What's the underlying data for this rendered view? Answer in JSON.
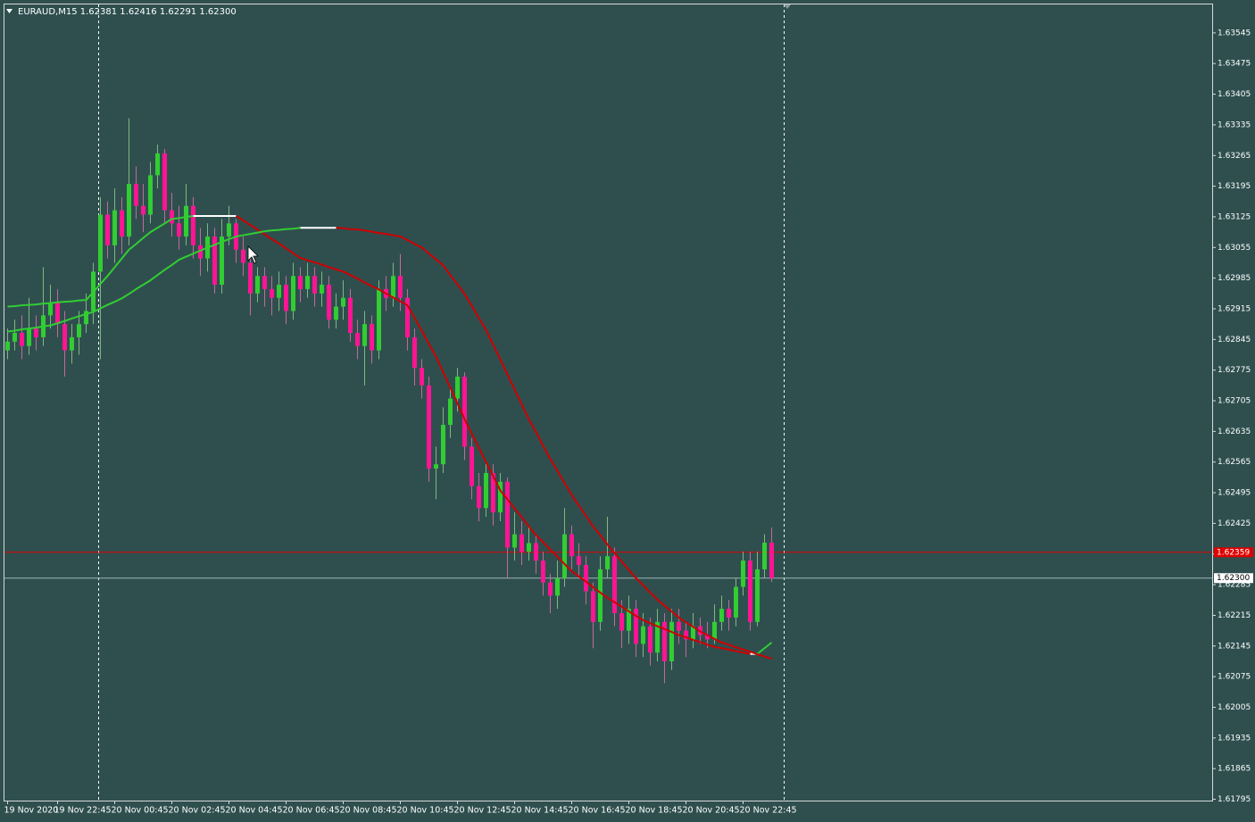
{
  "chart_data": {
    "type": "candlestick",
    "title": "EURAUD,M15  1.62381 1.62416 1.62291 1.62300",
    "categories": [
      "19 Nov 2020",
      null,
      null,
      null,
      null,
      null,
      null,
      "19 Nov 22:45",
      null,
      null,
      null,
      null,
      null,
      null,
      null,
      "20 Nov 00:45",
      null,
      null,
      null,
      null,
      null,
      null,
      null,
      "20 Nov 02:45",
      null,
      null,
      null,
      null,
      null,
      null,
      null,
      "20 Nov 04:45",
      null,
      null,
      null,
      null,
      null,
      null,
      null,
      "20 Nov 06:45",
      null,
      null,
      null,
      null,
      null,
      null,
      null,
      "20 Nov 08:45",
      null,
      null,
      null,
      null,
      null,
      null,
      null,
      "20 Nov 10:45",
      null,
      null,
      null,
      null,
      null,
      null,
      null,
      "20 Nov 12:45",
      null,
      null,
      null,
      null,
      null,
      null,
      null,
      "20 Nov 14:45",
      null,
      null,
      null,
      null,
      null,
      null,
      null,
      "20 Nov 16:45",
      null,
      null,
      null,
      null,
      null,
      null,
      null,
      "20 Nov 18:45",
      null,
      null,
      null,
      null,
      null,
      null,
      null,
      "20 Nov 20:45",
      null,
      null,
      null,
      null,
      null,
      null,
      null,
      "20 Nov 22:45",
      null,
      null,
      null,
      null
    ],
    "open": [
      1.6282,
      1.6284,
      1.6286,
      1.6283,
      1.6287,
      1.6285,
      1.629,
      1.6293,
      1.6288,
      1.6282,
      1.6285,
      1.6288,
      1.6291,
      1.63,
      1.6313,
      1.6306,
      1.6314,
      1.6308,
      1.632,
      1.6315,
      1.6313,
      1.6322,
      1.6327,
      1.6314,
      1.6311,
      1.6308,
      1.6315,
      1.6306,
      1.6303,
      1.6308,
      1.6297,
      1.6308,
      1.6311,
      1.6305,
      1.6302,
      1.6295,
      1.6299,
      1.6296,
      1.6294,
      1.6297,
      1.6291,
      1.6299,
      1.6296,
      1.6299,
      1.6295,
      1.6297,
      1.6289,
      1.6292,
      1.6294,
      1.6286,
      1.6283,
      1.6288,
      1.6282,
      1.6296,
      1.6294,
      1.6299,
      1.6294,
      1.6285,
      1.6278,
      1.6274,
      1.6255,
      1.6256,
      1.6265,
      1.6271,
      1.6276,
      1.626,
      1.6251,
      1.6246,
      1.6254,
      1.6245,
      1.6252,
      1.6237,
      1.624,
      1.6236,
      1.6238,
      1.6234,
      1.6229,
      1.6226,
      1.623,
      1.624,
      1.6235,
      1.6233,
      1.6227,
      1.622,
      1.6232,
      1.6235,
      1.6222,
      1.6218,
      1.6223,
      1.6215,
      1.6219,
      1.6213,
      1.622,
      1.6211,
      1.622,
      1.6218,
      1.6216,
      1.6219,
      1.6217,
      1.6216,
      1.622,
      1.6223,
      1.6221,
      1.6228,
      1.6234,
      1.622,
      1.6232,
      1.62381
    ],
    "high": [
      1.6287,
      1.6289,
      1.629,
      1.6294,
      1.629,
      1.6301,
      1.6297,
      1.6296,
      1.6291,
      1.6288,
      1.6291,
      1.6295,
      1.6302,
      1.6317,
      1.6316,
      1.6319,
      1.6317,
      1.6335,
      1.6324,
      1.632,
      1.6325,
      1.6329,
      1.6328,
      1.6318,
      1.6315,
      1.632,
      1.6317,
      1.631,
      1.6311,
      1.631,
      1.6312,
      1.6315,
      1.6312,
      1.6308,
      1.6304,
      1.6301,
      1.6301,
      1.6299,
      1.63,
      1.6299,
      1.6302,
      1.6301,
      1.6302,
      1.6301,
      1.63,
      1.6299,
      1.6295,
      1.6298,
      1.6296,
      1.6289,
      1.6291,
      1.629,
      1.6298,
      1.6299,
      1.6302,
      1.6304,
      1.6296,
      1.6287,
      1.628,
      1.6276,
      1.626,
      1.6269,
      1.6274,
      1.6278,
      1.6277,
      1.6262,
      1.6254,
      1.6256,
      1.6256,
      1.6254,
      1.6253,
      1.6245,
      1.6243,
      1.6242,
      1.624,
      1.6236,
      1.6231,
      1.6234,
      1.6246,
      1.6242,
      1.6238,
      1.6235,
      1.6229,
      1.6235,
      1.6244,
      1.6237,
      1.6225,
      1.6226,
      1.6225,
      1.6222,
      1.6221,
      1.6223,
      1.6222,
      1.6223,
      1.6223,
      1.622,
      1.6222,
      1.6221,
      1.622,
      1.6224,
      1.6226,
      1.6225,
      1.623,
      1.6236,
      1.6236,
      1.6236,
      1.624,
      1.62416
    ],
    "low": [
      1.628,
      1.6282,
      1.628,
      1.6281,
      1.6282,
      1.6283,
      1.6287,
      1.6285,
      1.6276,
      1.6279,
      1.6281,
      1.6286,
      1.6288,
      1.628,
      1.6303,
      1.6302,
      1.6304,
      1.6306,
      1.6312,
      1.6309,
      1.6311,
      1.6319,
      1.6311,
      1.6308,
      1.6305,
      1.6306,
      1.6303,
      1.6299,
      1.63,
      1.6295,
      1.6295,
      1.6306,
      1.6302,
      1.6299,
      1.629,
      1.6293,
      1.6292,
      1.629,
      1.6291,
      1.6288,
      1.6289,
      1.6293,
      1.6294,
      1.6292,
      1.6292,
      1.6287,
      1.6287,
      1.6289,
      1.6284,
      1.628,
      1.6274,
      1.6279,
      1.628,
      1.6291,
      1.6292,
      1.6291,
      1.6282,
      1.6274,
      1.6271,
      1.6252,
      1.6248,
      1.6254,
      1.6262,
      1.6268,
      1.6257,
      1.6248,
      1.6243,
      1.6244,
      1.6242,
      1.6243,
      1.623,
      1.6234,
      1.6233,
      1.6234,
      1.6231,
      1.6226,
      1.6222,
      1.6223,
      1.6228,
      1.6232,
      1.623,
      1.6224,
      1.6214,
      1.6218,
      1.623,
      1.6219,
      1.6214,
      1.6215,
      1.6212,
      1.6212,
      1.621,
      1.6211,
      1.6206,
      1.6209,
      1.6215,
      1.6212,
      1.6214,
      1.6215,
      1.6214,
      1.6215,
      1.6218,
      1.6218,
      1.6219,
      1.6226,
      1.6218,
      1.6219,
      1.623,
      1.62291
    ],
    "close": [
      1.6284,
      1.6286,
      1.6283,
      1.6287,
      1.6285,
      1.629,
      1.6293,
      1.6288,
      1.6282,
      1.6285,
      1.6288,
      1.6291,
      1.63,
      1.6313,
      1.6306,
      1.6314,
      1.6308,
      1.632,
      1.6315,
      1.6313,
      1.6322,
      1.6327,
      1.6314,
      1.6311,
      1.6308,
      1.6315,
      1.6306,
      1.6303,
      1.6308,
      1.6297,
      1.6308,
      1.6311,
      1.6305,
      1.6302,
      1.6295,
      1.6299,
      1.6296,
      1.6294,
      1.6297,
      1.6291,
      1.6299,
      1.6296,
      1.6299,
      1.6295,
      1.6297,
      1.6289,
      1.6292,
      1.6294,
      1.6286,
      1.6283,
      1.6288,
      1.6282,
      1.6296,
      1.6294,
      1.6299,
      1.6294,
      1.6285,
      1.6278,
      1.6274,
      1.6255,
      1.6256,
      1.6265,
      1.6271,
      1.6276,
      1.626,
      1.6251,
      1.6246,
      1.6254,
      1.6245,
      1.6252,
      1.6237,
      1.624,
      1.6236,
      1.6238,
      1.6234,
      1.6229,
      1.6226,
      1.623,
      1.624,
      1.6235,
      1.6233,
      1.6227,
      1.622,
      1.6232,
      1.6235,
      1.6222,
      1.6218,
      1.6223,
      1.6215,
      1.6219,
      1.6213,
      1.622,
      1.6211,
      1.622,
      1.6218,
      1.6216,
      1.6219,
      1.6217,
      1.6216,
      1.622,
      1.6223,
      1.6221,
      1.6228,
      1.6234,
      1.622,
      1.6232,
      1.62381,
      1.623
    ],
    "bull_color": "#32cd32",
    "bear_color": "#ff1493",
    "moving_averages": [
      {
        "values": [
          1.6292,
          1.62921,
          1.62923,
          1.62924,
          1.62925,
          1.62927,
          1.62928,
          1.6293,
          1.62931,
          1.62932,
          1.62934,
          1.62935,
          1.62953,
          1.62972,
          1.6299,
          1.6301,
          1.6303,
          1.6305,
          1.63063,
          1.63077,
          1.6309,
          1.631,
          1.6311,
          1.6312,
          1.63122,
          1.63125,
          1.63127,
          1.63127,
          1.63127,
          1.63127,
          1.63127,
          1.63127,
          1.63127,
          1.63117,
          1.63106,
          1.63096,
          1.63085,
          1.63074,
          1.63064,
          1.63053,
          1.63042,
          1.63031,
          1.63026,
          1.63021,
          1.63016,
          1.6301,
          1.63005,
          1.63,
          1.62992,
          1.62984,
          1.62975,
          1.62967,
          1.62959,
          1.6295,
          1.62941,
          1.62932,
          1.62923,
          1.62894,
          1.62865,
          1.62835,
          1.62806,
          1.6277,
          1.62735,
          1.62699,
          1.62663,
          1.6263,
          1.62598,
          1.62565,
          1.62533,
          1.625,
          1.6248,
          1.62459,
          1.62439,
          1.62418,
          1.62398,
          1.62382,
          1.62365,
          1.62349,
          1.62332,
          1.62316,
          1.62304,
          1.62292,
          1.62279,
          1.62267,
          1.62255,
          1.62245,
          1.62235,
          1.62224,
          1.62214,
          1.62204,
          1.62197,
          1.6219,
          1.62184,
          1.62177,
          1.6217,
          1.62165,
          1.62159,
          1.62154,
          1.62148,
          1.62143,
          1.6214,
          1.62137,
          1.62133,
          1.6213,
          1.62127,
          1.62127,
          1.6214,
          1.62153
        ]
      },
      {
        "values": [
          1.62863,
          1.62865,
          1.62868,
          1.6287,
          1.62872,
          1.62875,
          1.62877,
          1.62882,
          1.62887,
          1.62893,
          1.62898,
          1.62903,
          1.62908,
          1.62916,
          1.62924,
          1.62931,
          1.62939,
          1.62949,
          1.6296,
          1.6297,
          1.6298,
          1.62992,
          1.63004,
          1.63015,
          1.63027,
          1.63034,
          1.63041,
          1.63048,
          1.63055,
          1.63061,
          1.63068,
          1.63074,
          1.6308,
          1.63083,
          1.63086,
          1.63089,
          1.63092,
          1.63094,
          1.63095,
          1.63097,
          1.63098,
          1.631,
          1.631,
          1.631,
          1.631,
          1.631,
          1.631,
          1.63099,
          1.63097,
          1.63096,
          1.63094,
          1.63091,
          1.63088,
          1.63086,
          1.63083,
          1.6308,
          1.63072,
          1.63063,
          1.63055,
          1.63041,
          1.63028,
          1.63014,
          1.62992,
          1.62971,
          1.62949,
          1.62922,
          1.62894,
          1.62867,
          1.62833,
          1.62799,
          1.62765,
          1.62731,
          1.62697,
          1.62663,
          1.62633,
          1.62602,
          1.62572,
          1.62545,
          1.62517,
          1.6249,
          1.62466,
          1.62442,
          1.62418,
          1.62398,
          1.62377,
          1.62357,
          1.62338,
          1.62319,
          1.623,
          1.62284,
          1.62267,
          1.62251,
          1.62237,
          1.62224,
          1.6221,
          1.62199,
          1.62189,
          1.62178,
          1.6217,
          1.62161,
          1.62153,
          1.62148,
          1.62142,
          1.62137,
          1.62132,
          1.62126,
          1.62121,
          1.62116
        ]
      }
    ],
    "slope_colors": {
      "rising": "#32cd32",
      "falling": "#d00000",
      "flat": "#ffffff"
    },
    "price_lines": [
      {
        "price": 1.62359,
        "color": "#e00000"
      },
      {
        "price": {
          "value": 1.623,
          "label": "1.62300"
        },
        "color": "#9fb3b3"
      }
    ],
    "ylim": [
      1.61792,
      1.63612
    ],
    "yticks": [
      1.63545,
      1.63475,
      1.63405,
      1.63335,
      1.63265,
      1.63195,
      1.63125,
      1.63055,
      1.62985,
      1.62915,
      1.62845,
      1.62775,
      1.62705,
      1.62635,
      1.62565,
      1.62495,
      1.62425,
      1.62355,
      1.62285,
      1.62215,
      1.62145,
      1.62075,
      1.62005,
      1.61935,
      1.61865,
      1.61795
    ]
  }
}
